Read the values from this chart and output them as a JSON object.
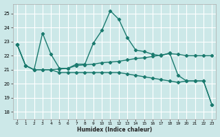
{
  "xlabel": "Humidex (Indice chaleur)",
  "xlim": [
    -0.5,
    23.5
  ],
  "ylim": [
    17.5,
    25.7
  ],
  "yticks": [
    18,
    19,
    20,
    21,
    22,
    23,
    24,
    25
  ],
  "xticks": [
    0,
    1,
    2,
    3,
    4,
    5,
    6,
    7,
    8,
    9,
    10,
    11,
    12,
    13,
    14,
    15,
    16,
    17,
    18,
    19,
    20,
    21,
    22,
    23
  ],
  "background_color": "#cce8e8",
  "grid_color": "#ffffff",
  "line_color": "#1a7a6e",
  "line1_y": [
    22.8,
    21.3,
    21.0,
    23.6,
    22.1,
    21.1,
    21.1,
    21.4,
    21.4,
    22.9,
    23.8,
    25.2,
    24.6,
    23.3,
    22.4,
    22.3,
    22.1,
    22.0,
    22.2,
    20.6,
    20.2,
    20.2,
    20.2,
    18.5
  ],
  "line2_y": [
    22.8,
    21.3,
    21.0,
    21.0,
    21.0,
    21.05,
    21.1,
    21.3,
    21.35,
    21.4,
    21.5,
    21.55,
    21.6,
    21.7,
    21.8,
    21.85,
    21.95,
    22.05,
    22.15,
    22.1,
    22.0,
    22.0,
    22.0,
    22.0
  ],
  "line3_y": [
    22.8,
    21.3,
    21.0,
    21.0,
    21.0,
    20.8,
    20.8,
    20.8,
    20.8,
    20.8,
    20.8,
    20.8,
    20.8,
    20.7,
    20.6,
    20.5,
    20.4,
    20.3,
    20.2,
    20.1,
    20.2,
    20.2,
    20.2,
    18.5
  ]
}
